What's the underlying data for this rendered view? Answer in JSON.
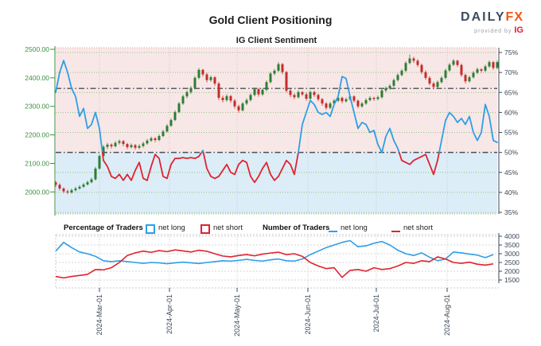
{
  "header": {
    "title": "Gold Client Positioning",
    "subtitle": "IG Client Sentiment",
    "logo": {
      "daily": "DAILY",
      "fx": "FX",
      "provided_by": "provided by",
      "ig": "IG"
    }
  },
  "legend": {
    "percentage_label": "Percentage of Traders",
    "pct_net_long": "net long",
    "pct_net_short": "net short",
    "number_label": "Number of Traders",
    "num_net_long": "net long",
    "num_net_short": "net short"
  },
  "colors": {
    "net_long_line": "#2e9fe6",
    "net_short_line": "#e0232e",
    "candle_up": "#2e7d32",
    "candle_down": "#c62b2b",
    "bg_above_50": "#f8e7e7",
    "bg_below_50": "#dcedf8",
    "price_axis": "#3e8e3e",
    "pct_axis": "#3b4754",
    "grid_green": "#93c183",
    "grid_gray": "#c9c9c9",
    "ref_line": "#4a4f54",
    "top_border": "#dca4a4"
  },
  "chart_data": {
    "type": "composite",
    "title": "Gold Client Positioning",
    "subtitle": "IG Client Sentiment",
    "x_axis": {
      "labels": [
        "2024-Mar-01",
        "2024-Apr-01",
        "2024-May-01",
        "2024-Jun-01",
        "2024-Jul-01",
        "2024-Aug-01"
      ],
      "tick_sessions": [
        11,
        28.6,
        45.6,
        63.4,
        80.6,
        98.4
      ],
      "sessions": 112
    },
    "main_panel": {
      "price_axis_ticks": [
        2000,
        2100,
        2200,
        2300,
        2400,
        2500
      ],
      "price_ylim": [
        2000,
        2500
      ],
      "pct_axis_ticks": [
        35,
        40,
        45,
        50,
        55,
        60,
        65,
        70,
        75
      ],
      "pct_ylim": [
        35,
        75
      ],
      "reference_pct_lines": [
        50,
        66
      ],
      "grid": true,
      "candles_ohlc": [
        [
          2034,
          2038,
          2018,
          2025
        ],
        [
          2025,
          2030,
          2005,
          2012
        ],
        [
          2012,
          2016,
          1996,
          2002
        ],
        [
          2002,
          2008,
          1992,
          1998
        ],
        [
          1998,
          2012,
          1994,
          2006
        ],
        [
          2006,
          2018,
          2002,
          2012
        ],
        [
          2012,
          2024,
          2008,
          2018
        ],
        [
          2018,
          2032,
          2014,
          2026
        ],
        [
          2026,
          2040,
          2022,
          2034
        ],
        [
          2034,
          2050,
          2030,
          2044
        ],
        [
          2044,
          2088,
          2040,
          2082
        ],
        [
          2082,
          2132,
          2078,
          2126
        ],
        [
          2126,
          2164,
          2120,
          2158
        ],
        [
          2158,
          2172,
          2150,
          2166
        ],
        [
          2166,
          2170,
          2152,
          2160
        ],
        [
          2160,
          2178,
          2156,
          2172
        ],
        [
          2172,
          2184,
          2166,
          2178
        ],
        [
          2178,
          2182,
          2160,
          2168
        ],
        [
          2168,
          2172,
          2150,
          2157
        ],
        [
          2157,
          2170,
          2152,
          2164
        ],
        [
          2164,
          2168,
          2148,
          2155
        ],
        [
          2155,
          2167,
          2150,
          2161
        ],
        [
          2161,
          2176,
          2156,
          2170
        ],
        [
          2170,
          2186,
          2165,
          2180
        ],
        [
          2180,
          2194,
          2175,
          2188
        ],
        [
          2188,
          2192,
          2174,
          2182
        ],
        [
          2182,
          2202,
          2178,
          2196
        ],
        [
          2196,
          2218,
          2192,
          2212
        ],
        [
          2212,
          2238,
          2208,
          2232
        ],
        [
          2232,
          2258,
          2228,
          2252
        ],
        [
          2252,
          2286,
          2248,
          2280
        ],
        [
          2280,
          2316,
          2276,
          2310
        ],
        [
          2310,
          2341,
          2305,
          2335
        ],
        [
          2335,
          2356,
          2328,
          2350
        ],
        [
          2350,
          2371,
          2344,
          2365
        ],
        [
          2365,
          2406,
          2360,
          2400
        ],
        [
          2400,
          2434,
          2395,
          2428
        ],
        [
          2428,
          2432,
          2404,
          2412
        ],
        [
          2412,
          2418,
          2384,
          2392
        ],
        [
          2392,
          2408,
          2386,
          2402
        ],
        [
          2402,
          2406,
          2372,
          2380
        ],
        [
          2380,
          2386,
          2322,
          2330
        ],
        [
          2330,
          2338,
          2314,
          2322
        ],
        [
          2322,
          2342,
          2316,
          2336
        ],
        [
          2336,
          2340,
          2312,
          2320
        ],
        [
          2320,
          2326,
          2292,
          2300
        ],
        [
          2300,
          2306,
          2278,
          2286
        ],
        [
          2286,
          2316,
          2282,
          2310
        ],
        [
          2310,
          2328,
          2304,
          2322
        ],
        [
          2322,
          2346,
          2317,
          2340
        ],
        [
          2340,
          2366,
          2335,
          2360
        ],
        [
          2360,
          2364,
          2334,
          2342
        ],
        [
          2342,
          2364,
          2337,
          2358
        ],
        [
          2358,
          2391,
          2353,
          2385
        ],
        [
          2385,
          2421,
          2380,
          2415
        ],
        [
          2415,
          2431,
          2409,
          2425
        ],
        [
          2425,
          2455,
          2420,
          2448
        ],
        [
          2448,
          2452,
          2412,
          2420
        ],
        [
          2420,
          2424,
          2348,
          2355
        ],
        [
          2355,
          2361,
          2332,
          2340
        ],
        [
          2340,
          2346,
          2325,
          2332
        ],
        [
          2332,
          2356,
          2327,
          2350
        ],
        [
          2350,
          2354,
          2336,
          2342
        ],
        [
          2342,
          2348,
          2320,
          2327
        ],
        [
          2327,
          2356,
          2322,
          2350
        ],
        [
          2350,
          2355,
          2333,
          2340
        ],
        [
          2340,
          2345,
          2318,
          2325
        ],
        [
          2325,
          2330,
          2302,
          2310
        ],
        [
          2310,
          2315,
          2288,
          2295
        ],
        [
          2295,
          2316,
          2290,
          2310
        ],
        [
          2310,
          2326,
          2305,
          2320
        ],
        [
          2320,
          2336,
          2315,
          2330
        ],
        [
          2330,
          2334,
          2311,
          2318
        ],
        [
          2318,
          2331,
          2313,
          2325
        ],
        [
          2325,
          2341,
          2320,
          2335
        ],
        [
          2335,
          2339,
          2313,
          2320
        ],
        [
          2320,
          2324,
          2293,
          2300
        ],
        [
          2300,
          2316,
          2295,
          2310
        ],
        [
          2310,
          2328,
          2305,
          2322
        ],
        [
          2322,
          2336,
          2317,
          2330
        ],
        [
          2330,
          2334,
          2319,
          2326
        ],
        [
          2326,
          2338,
          2321,
          2332
        ],
        [
          2332,
          2362,
          2327,
          2356
        ],
        [
          2356,
          2370,
          2350,
          2364
        ],
        [
          2364,
          2378,
          2358,
          2372
        ],
        [
          2372,
          2398,
          2367,
          2392
        ],
        [
          2392,
          2416,
          2387,
          2410
        ],
        [
          2410,
          2431,
          2405,
          2425
        ],
        [
          2425,
          2458,
          2420,
          2452
        ],
        [
          2452,
          2482,
          2447,
          2468
        ],
        [
          2468,
          2474,
          2452,
          2460
        ],
        [
          2460,
          2466,
          2438,
          2445
        ],
        [
          2445,
          2450,
          2413,
          2420
        ],
        [
          2420,
          2426,
          2393,
          2400
        ],
        [
          2400,
          2406,
          2373,
          2380
        ],
        [
          2380,
          2386,
          2360,
          2368
        ],
        [
          2368,
          2391,
          2363,
          2385
        ],
        [
          2385,
          2406,
          2380,
          2400
        ],
        [
          2400,
          2432,
          2395,
          2426
        ],
        [
          2426,
          2452,
          2421,
          2446
        ],
        [
          2446,
          2466,
          2441,
          2460
        ],
        [
          2460,
          2464,
          2438,
          2445
        ],
        [
          2445,
          2450,
          2403,
          2410
        ],
        [
          2410,
          2415,
          2380,
          2388
        ],
        [
          2388,
          2408,
          2383,
          2402
        ],
        [
          2402,
          2424,
          2397,
          2418
        ],
        [
          2418,
          2436,
          2413,
          2430
        ],
        [
          2430,
          2434,
          2418,
          2425
        ],
        [
          2425,
          2446,
          2420,
          2440
        ],
        [
          2440,
          2461,
          2435,
          2455
        ],
        [
          2455,
          2459,
          2428,
          2435
        ],
        [
          2435,
          2461,
          2430,
          2455
        ]
      ],
      "net_long_pct": [
        65,
        70,
        73,
        70,
        66,
        64,
        59,
        61,
        56,
        57,
        60,
        56,
        48,
        46.5,
        44,
        43.5,
        44.5,
        43,
        44.5,
        43,
        45.5,
        47.5,
        43.5,
        43,
        46.5,
        49.5,
        48.5,
        44,
        43.5,
        47,
        48.5,
        48.5,
        48.7,
        48.5,
        48.7,
        48.5,
        49,
        50.5,
        46,
        44,
        43.5,
        44,
        45.5,
        47,
        45,
        44.5,
        47,
        48,
        47.5,
        44,
        42.5,
        44,
        46,
        47.5,
        44.5,
        43,
        44,
        46,
        48,
        47,
        44.5,
        50,
        57,
        60,
        63,
        62,
        60,
        59.5,
        60,
        59,
        62,
        64,
        69,
        68.5,
        64,
        60,
        56,
        57.5,
        57,
        55,
        55.5,
        52,
        50,
        54,
        56,
        53,
        51,
        48,
        47.5,
        47,
        48,
        48.5,
        49,
        49.5,
        47,
        44.5,
        48,
        53,
        58,
        60,
        59,
        57.5,
        58.5,
        57,
        59,
        55,
        53,
        55,
        62,
        59,
        53,
        52.5
      ]
    },
    "lower_panel": {
      "count_axis_ticks": [
        1500,
        2000,
        2500,
        3000,
        3500,
        4000
      ],
      "count_ylim": [
        1500,
        4000
      ],
      "session_step": 2,
      "net_long_count": [
        3150,
        3650,
        3350,
        3100,
        3000,
        2850,
        2600,
        2550,
        2600,
        2550,
        2500,
        2450,
        2500,
        2480,
        2430,
        2480,
        2520,
        2480,
        2440,
        2500,
        2550,
        2600,
        2580,
        2620,
        2680,
        2620,
        2580,
        2650,
        2700,
        2600,
        2580,
        2700,
        2950,
        3150,
        3350,
        3500,
        3650,
        3750,
        3400,
        3450,
        3600,
        3700,
        3500,
        3200,
        3000,
        2900,
        3050,
        2800,
        2600,
        2700,
        3100,
        3050,
        2980,
        2920,
        2780,
        2950
      ],
      "net_short_count": [
        1700,
        1620,
        1700,
        1760,
        1820,
        2100,
        2080,
        2200,
        2500,
        2900,
        3050,
        3150,
        3080,
        3180,
        3120,
        3220,
        3160,
        3100,
        3200,
        3140,
        3000,
        2870,
        2820,
        2900,
        2950,
        2880,
        2980,
        3040,
        3090,
        2950,
        3000,
        2850,
        2500,
        2300,
        2150,
        2200,
        1650,
        2050,
        2100,
        2000,
        2200,
        2100,
        2150,
        2300,
        2500,
        2450,
        2600,
        2550,
        2820,
        2700,
        2500,
        2450,
        2520,
        2400,
        2350,
        2420
      ]
    }
  }
}
